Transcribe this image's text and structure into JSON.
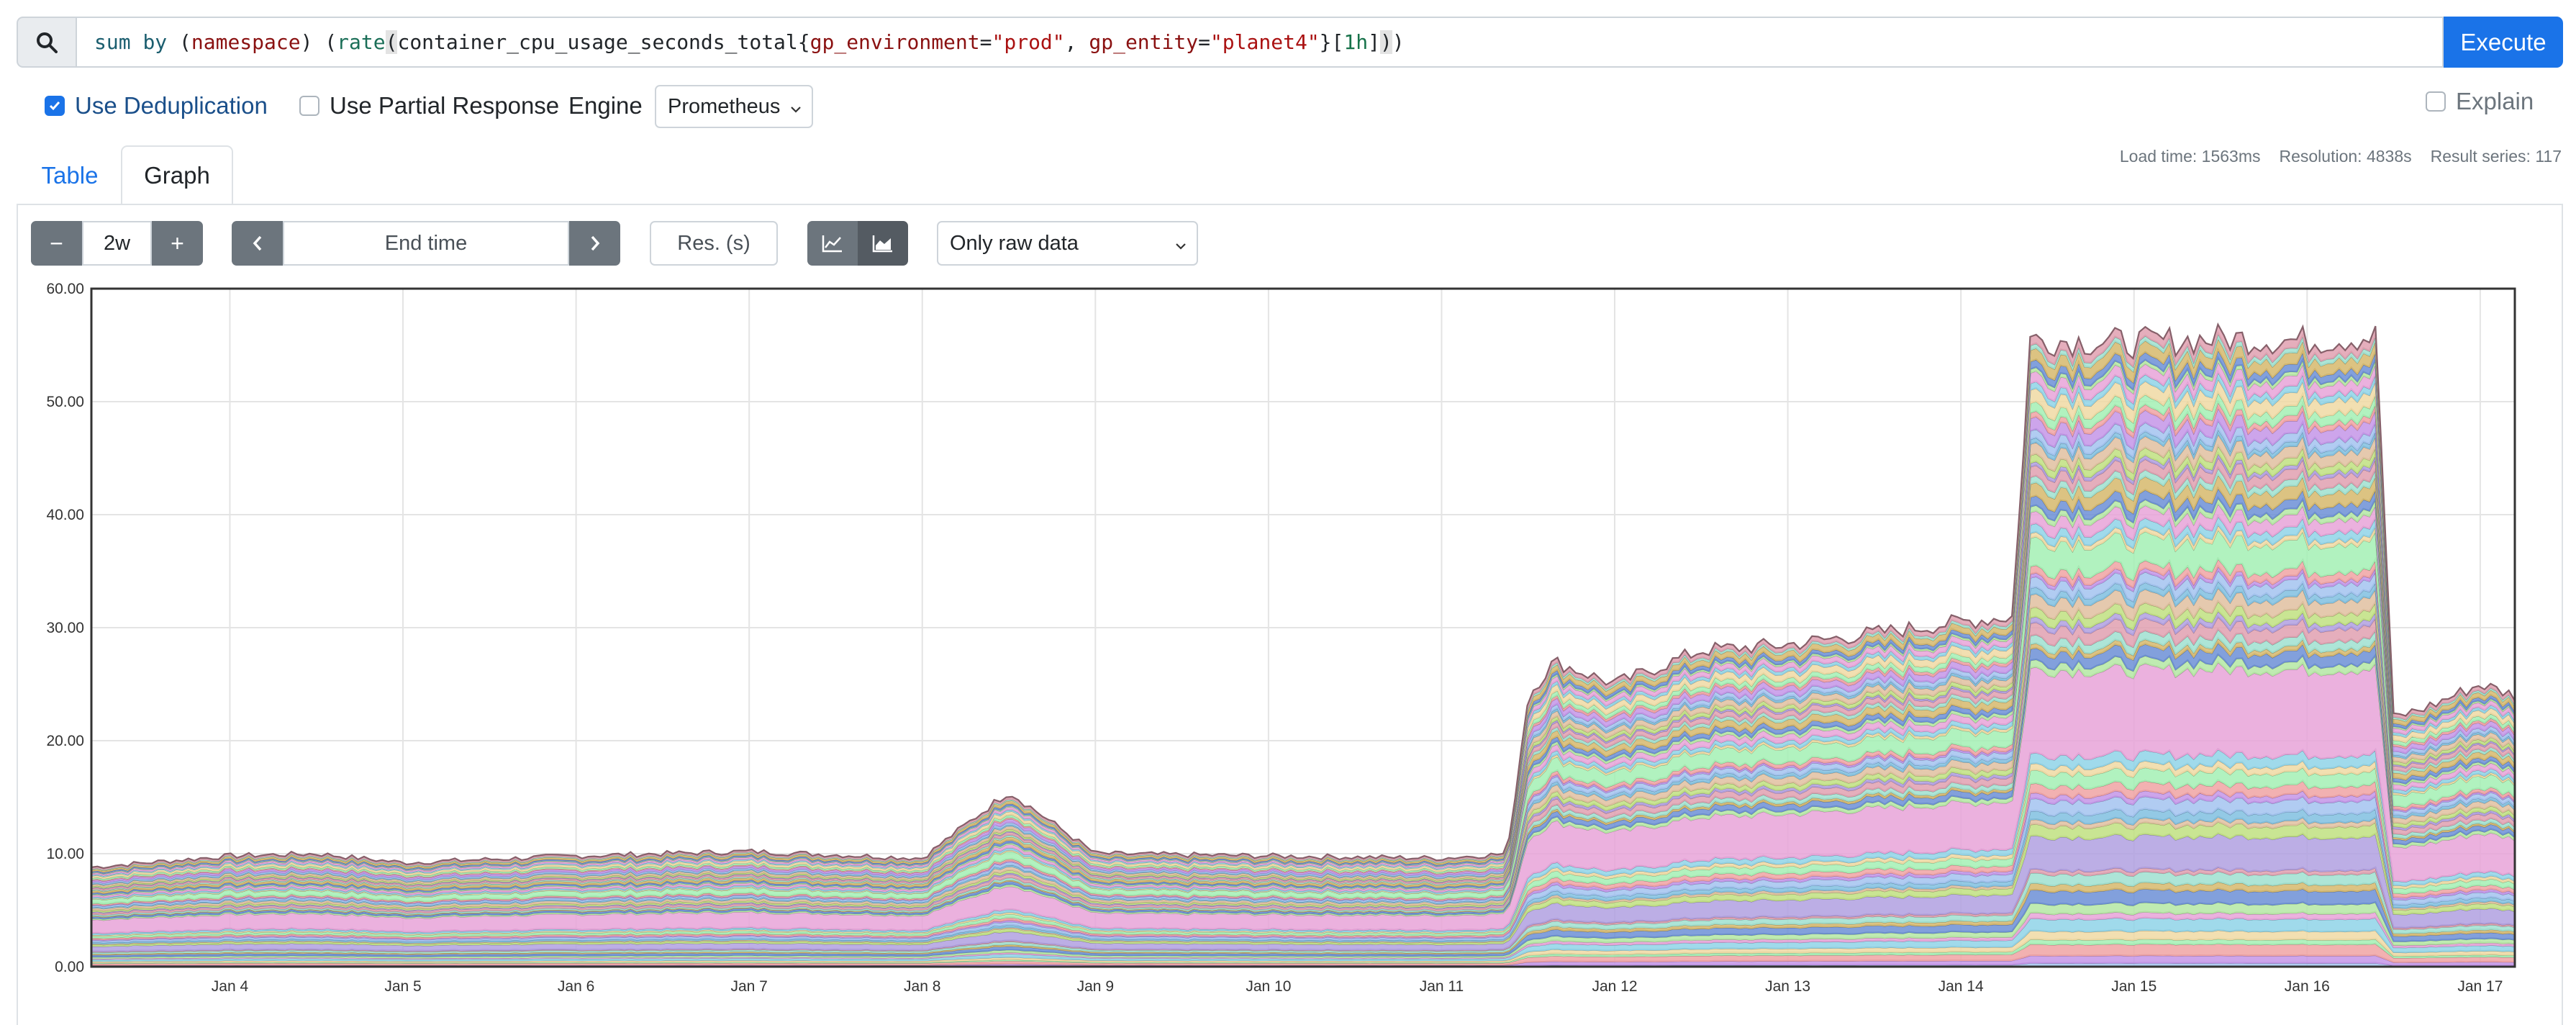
{
  "query": {
    "tokens": [
      {
        "t": "sum",
        "c": "q-kw"
      },
      {
        "t": " ",
        "c": ""
      },
      {
        "t": "by",
        "c": "q-kw"
      },
      {
        "t": " (",
        "c": ""
      },
      {
        "t": "namespace",
        "c": "q-lbl"
      },
      {
        "t": ") (",
        "c": ""
      },
      {
        "t": "rate",
        "c": "q-fn"
      },
      {
        "t": "(",
        "c": "q-br"
      },
      {
        "t": "container_cpu_usage_seconds_total{",
        "c": ""
      },
      {
        "t": "gp_environment",
        "c": "q-lbl"
      },
      {
        "t": "=",
        "c": ""
      },
      {
        "t": "\"prod\"",
        "c": "q-str"
      },
      {
        "t": ", ",
        "c": ""
      },
      {
        "t": "gp_entity",
        "c": "q-lbl"
      },
      {
        "t": "=",
        "c": ""
      },
      {
        "t": "\"planet4\"",
        "c": "q-str"
      },
      {
        "t": "}[",
        "c": ""
      },
      {
        "t": "1h",
        "c": "q-num"
      },
      {
        "t": "]",
        "c": ""
      },
      {
        "t": ")",
        "c": "q-br"
      },
      {
        "t": ")",
        "c": ""
      }
    ],
    "execute_label": "Execute"
  },
  "options": {
    "dedup_label": "Use Deduplication",
    "dedup_checked": true,
    "partial_label": "Use Partial Response",
    "partial_checked": false,
    "engine_label": "Engine",
    "engine_value": "Prometheus",
    "explain_label": "Explain",
    "explain_checked": false
  },
  "tabs": {
    "table": "Table",
    "graph": "Graph",
    "active": "Graph"
  },
  "stats": {
    "load_time": "Load time: 1563ms",
    "resolution": "Resolution: 4838s",
    "result_series": "Result series: 117"
  },
  "controls": {
    "minus": "−",
    "range": "2w",
    "plus": "+",
    "end_time_placeholder": "End time",
    "resolution_placeholder": "Res. (s)",
    "mode": "stacked",
    "downsampling": "Only raw data"
  },
  "chart_data": {
    "type": "area",
    "stacked": true,
    "ylim": [
      0,
      60
    ],
    "yticks": [
      "0.00",
      "10.00",
      "20.00",
      "30.00",
      "40.00",
      "50.00",
      "60.00"
    ],
    "xlim_days": [
      3.2,
      17.2
    ],
    "xticks": [
      {
        "label": "Jan 4",
        "day": 4
      },
      {
        "label": "Jan 5",
        "day": 5
      },
      {
        "label": "Jan 6",
        "day": 6
      },
      {
        "label": "Jan 7",
        "day": 7
      },
      {
        "label": "Jan 8",
        "day": 8
      },
      {
        "label": "Jan 9",
        "day": 9
      },
      {
        "label": "Jan 10",
        "day": 10
      },
      {
        "label": "Jan 11",
        "day": 11
      },
      {
        "label": "Jan 12",
        "day": 12
      },
      {
        "label": "Jan 13",
        "day": 13
      },
      {
        "label": "Jan 14",
        "day": 14
      },
      {
        "label": "Jan 15",
        "day": 15
      },
      {
        "label": "Jan 16",
        "day": 16
      },
      {
        "label": "Jan 17",
        "day": 17
      }
    ],
    "grid": true,
    "series_count": 117,
    "total_profile": [
      [
        3.2,
        8.8
      ],
      [
        4.0,
        9.8
      ],
      [
        4.5,
        10.0
      ],
      [
        5.0,
        9.2
      ],
      [
        6.0,
        9.8
      ],
      [
        7.0,
        10.2
      ],
      [
        8.0,
        9.6
      ],
      [
        8.5,
        15.5
      ],
      [
        9.0,
        10.0
      ],
      [
        10.0,
        9.8
      ],
      [
        11.0,
        9.6
      ],
      [
        11.38,
        10.0
      ],
      [
        11.5,
        24.0
      ],
      [
        11.65,
        27.0
      ],
      [
        12.0,
        25.0
      ],
      [
        12.5,
        28.0
      ],
      [
        13.0,
        28.5
      ],
      [
        13.5,
        29.5
      ],
      [
        14.0,
        30.5
      ],
      [
        14.3,
        31.0
      ],
      [
        14.4,
        55.5
      ],
      [
        15.0,
        55.2
      ],
      [
        15.5,
        55.6
      ],
      [
        16.0,
        55.4
      ],
      [
        16.4,
        55.8
      ],
      [
        16.5,
        22.0
      ],
      [
        16.7,
        23.0
      ],
      [
        17.0,
        25.0
      ],
      [
        17.2,
        24.0
      ]
    ],
    "colors": [
      "#a3c3f0",
      "#c495e8",
      "#f0a3a3",
      "#a3f0b4",
      "#f0d9a3",
      "#8fd3e8",
      "#e8a3d8",
      "#b4e8a3",
      "#6c8fd6",
      "#d6b86c",
      "#9fe0d0",
      "#e0a0b0",
      "#b0a0e0",
      "#c0e080",
      "#e0c0a0",
      "#80c0e0"
    ]
  }
}
